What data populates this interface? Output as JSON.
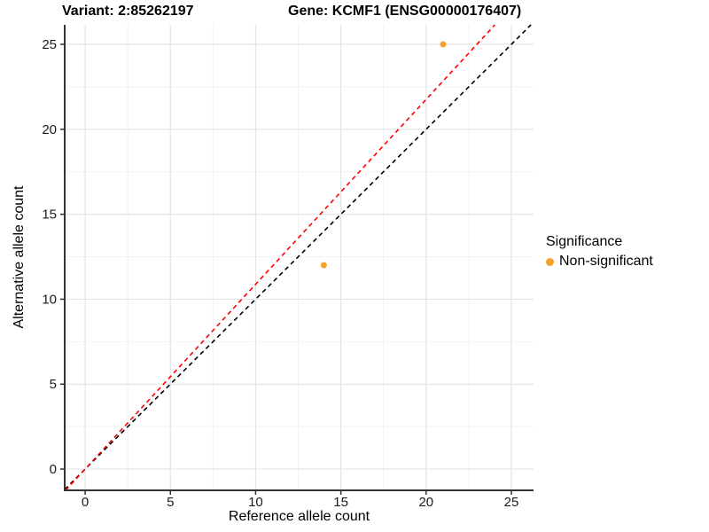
{
  "titles": {
    "variant": "Variant: 2:85262197",
    "gene": "Gene: KCMF1 (ENSG00000176407)"
  },
  "chart_data": {
    "type": "scatter",
    "title_left": "Variant: 2:85262197",
    "title_right": "Gene: KCMF1 (ENSG00000176407)",
    "xlabel": "Reference allele count",
    "ylabel": "Alternative allele count",
    "xlim": [
      -1.2,
      26.3
    ],
    "ylim": [
      -1.25,
      26.15
    ],
    "x_ticks": [
      0,
      5,
      10,
      15,
      20,
      25
    ],
    "y_ticks": [
      0,
      5,
      10,
      15,
      20,
      25
    ],
    "x_minor_ticks": [
      2.5,
      7.5,
      12.5,
      17.5,
      22.5
    ],
    "y_minor_ticks": [
      2.5,
      7.5,
      12.5,
      17.5,
      22.5
    ],
    "grid": "major+minor",
    "points": [
      {
        "x": 14,
        "y": 12,
        "series": "Non-significant"
      },
      {
        "x": 21,
        "y": 25,
        "series": "Non-significant"
      }
    ],
    "point_color": "#F8A12A",
    "point_radius": 3.5,
    "ablines": [
      {
        "name": "identity",
        "slope": 1.0,
        "intercept": 0,
        "color": "#000000",
        "style": "dashed"
      },
      {
        "name": "expected-ratio",
        "slope": 1.088,
        "intercept": 0,
        "color": "#FF0000",
        "style": "dashed"
      }
    ],
    "legend": {
      "title": "Significance",
      "position": "right",
      "items": [
        {
          "label": "Non-significant",
          "color": "#F8A12A"
        }
      ]
    },
    "colors": {
      "grid_major": "#E4E4E4",
      "grid_minor": "#F2F2F2",
      "axis_line": "#333333",
      "tick_mark": "#333333",
      "tick_label": "#1A1A1A"
    }
  }
}
